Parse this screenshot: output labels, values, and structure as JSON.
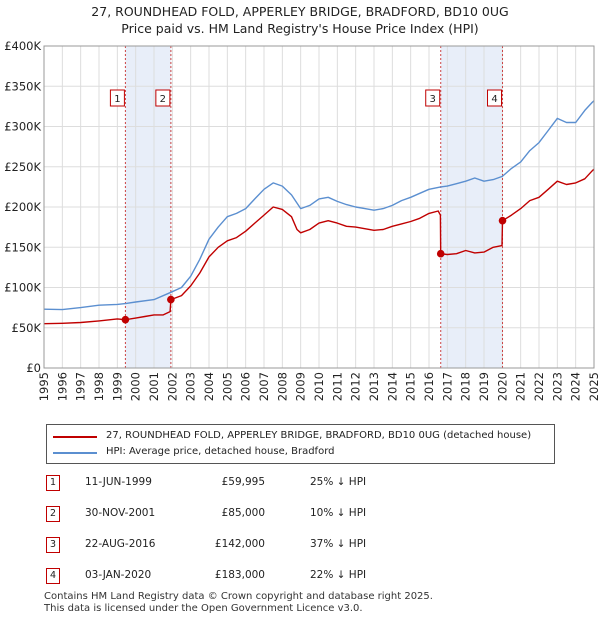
{
  "chart_data": {
    "type": "line",
    "title": "27, ROUNDHEAD FOLD, APPERLEY BRIDGE, BRADFORD, BD10 0UG",
    "subtitle": "Price paid vs. HM Land Registry's House Price Index (HPI)",
    "xlabel": "",
    "ylabel": "",
    "xlim": [
      1995,
      2025
    ],
    "ylim": [
      0,
      400000
    ],
    "x_ticks": [
      "1995",
      "1996",
      "1997",
      "1998",
      "1999",
      "2000",
      "2001",
      "2002",
      "2003",
      "2004",
      "2005",
      "2006",
      "2007",
      "2008",
      "2009",
      "2010",
      "2011",
      "2012",
      "2013",
      "2014",
      "2015",
      "2016",
      "2017",
      "2018",
      "2019",
      "2020",
      "2021",
      "2022",
      "2023",
      "2024",
      "2025"
    ],
    "y_ticks": [
      {
        "value": 0,
        "label": "£0"
      },
      {
        "value": 50000,
        "label": "£50K"
      },
      {
        "value": 100000,
        "label": "£100K"
      },
      {
        "value": 150000,
        "label": "£150K"
      },
      {
        "value": 200000,
        "label": "£200K"
      },
      {
        "value": 250000,
        "label": "£250K"
      },
      {
        "value": 300000,
        "label": "£300K"
      },
      {
        "value": 350000,
        "label": "£350K"
      },
      {
        "value": 400000,
        "label": "£400K"
      }
    ],
    "grid": true,
    "series": [
      {
        "name": "27, ROUNDHEAD FOLD, APPERLEY BRIDGE, BRADFORD, BD10 0UG (detached house)",
        "color": "#c00000",
        "points": [
          [
            1995.0,
            55000
          ],
          [
            1996.0,
            55500
          ],
          [
            1997.0,
            56500
          ],
          [
            1998.0,
            58500
          ],
          [
            1999.0,
            61000
          ],
          [
            1999.44,
            59995
          ],
          [
            2000.0,
            62000
          ],
          [
            2000.5,
            64000
          ],
          [
            2001.0,
            66000
          ],
          [
            2001.5,
            66000
          ],
          [
            2001.88,
            70000
          ],
          [
            2001.92,
            85000
          ],
          [
            2002.5,
            90000
          ],
          [
            2003.0,
            102000
          ],
          [
            2003.5,
            118000
          ],
          [
            2004.0,
            138000
          ],
          [
            2004.5,
            150000
          ],
          [
            2005.0,
            158000
          ],
          [
            2005.5,
            162000
          ],
          [
            2006.0,
            170000
          ],
          [
            2006.5,
            180000
          ],
          [
            2007.0,
            190000
          ],
          [
            2007.5,
            200000
          ],
          [
            2008.0,
            197000
          ],
          [
            2008.5,
            188000
          ],
          [
            2008.8,
            172000
          ],
          [
            2009.0,
            168000
          ],
          [
            2009.5,
            172000
          ],
          [
            2010.0,
            180000
          ],
          [
            2010.5,
            183000
          ],
          [
            2011.0,
            180000
          ],
          [
            2011.5,
            176000
          ],
          [
            2012.0,
            175000
          ],
          [
            2012.5,
            173000
          ],
          [
            2013.0,
            171000
          ],
          [
            2013.5,
            172000
          ],
          [
            2014.0,
            176000
          ],
          [
            2014.5,
            179000
          ],
          [
            2015.0,
            182000
          ],
          [
            2015.5,
            186000
          ],
          [
            2016.0,
            192000
          ],
          [
            2016.5,
            195000
          ],
          [
            2016.62,
            190000
          ],
          [
            2016.64,
            142000
          ],
          [
            2017.0,
            141000
          ],
          [
            2017.5,
            142000
          ],
          [
            2018.0,
            146000
          ],
          [
            2018.5,
            143000
          ],
          [
            2019.0,
            144000
          ],
          [
            2019.5,
            150000
          ],
          [
            2019.98,
            152000
          ],
          [
            2020.01,
            183000
          ],
          [
            2020.5,
            190000
          ],
          [
            2021.0,
            198000
          ],
          [
            2021.5,
            208000
          ],
          [
            2022.0,
            212000
          ],
          [
            2022.5,
            222000
          ],
          [
            2023.0,
            232000
          ],
          [
            2023.5,
            228000
          ],
          [
            2024.0,
            230000
          ],
          [
            2024.5,
            235000
          ],
          [
            2024.9,
            245000
          ],
          [
            2025.0,
            247000
          ]
        ]
      },
      {
        "name": "HPI: Average price, detached house, Bradford",
        "color": "#5b8fd0",
        "points": [
          [
            1995.0,
            73000
          ],
          [
            1996.0,
            72500
          ],
          [
            1997.0,
            75000
          ],
          [
            1998.0,
            78000
          ],
          [
            1999.0,
            79000
          ],
          [
            1999.44,
            80000
          ],
          [
            2000.0,
            82000
          ],
          [
            2001.0,
            85000
          ],
          [
            2001.92,
            94000
          ],
          [
            2002.5,
            100000
          ],
          [
            2003.0,
            114000
          ],
          [
            2003.5,
            135000
          ],
          [
            2004.0,
            160000
          ],
          [
            2004.5,
            175000
          ],
          [
            2005.0,
            188000
          ],
          [
            2005.5,
            192000
          ],
          [
            2006.0,
            198000
          ],
          [
            2006.5,
            210000
          ],
          [
            2007.0,
            222000
          ],
          [
            2007.5,
            230000
          ],
          [
            2008.0,
            226000
          ],
          [
            2008.5,
            215000
          ],
          [
            2009.0,
            198000
          ],
          [
            2009.5,
            202000
          ],
          [
            2010.0,
            210000
          ],
          [
            2010.5,
            212000
          ],
          [
            2011.0,
            207000
          ],
          [
            2011.5,
            203000
          ],
          [
            2012.0,
            200000
          ],
          [
            2012.5,
            198000
          ],
          [
            2013.0,
            196000
          ],
          [
            2013.5,
            198000
          ],
          [
            2014.0,
            202000
          ],
          [
            2014.5,
            208000
          ],
          [
            2015.0,
            212000
          ],
          [
            2015.5,
            217000
          ],
          [
            2016.0,
            222000
          ],
          [
            2016.64,
            225000
          ],
          [
            2017.0,
            226000
          ],
          [
            2017.5,
            229000
          ],
          [
            2018.0,
            232000
          ],
          [
            2018.5,
            236000
          ],
          [
            2019.0,
            232000
          ],
          [
            2019.5,
            234000
          ],
          [
            2020.0,
            238000
          ],
          [
            2020.5,
            248000
          ],
          [
            2021.0,
            256000
          ],
          [
            2021.5,
            270000
          ],
          [
            2022.0,
            280000
          ],
          [
            2022.5,
            295000
          ],
          [
            2023.0,
            310000
          ],
          [
            2023.5,
            305000
          ],
          [
            2024.0,
            305000
          ],
          [
            2024.5,
            320000
          ],
          [
            2024.9,
            330000
          ],
          [
            2025.0,
            332000
          ]
        ]
      }
    ],
    "sales": [
      {
        "id": "1",
        "x": 1999.44,
        "value": 59995,
        "date": "11-JUN-1999",
        "price": "£59,995",
        "hpi": "25% ↓ HPI"
      },
      {
        "id": "2",
        "x": 2001.92,
        "value": 85000,
        "date": "30-NOV-2001",
        "price": "£85,000",
        "hpi": "10% ↓ HPI"
      },
      {
        "id": "3",
        "x": 2016.64,
        "value": 142000,
        "date": "22-AUG-2016",
        "price": "£142,000",
        "hpi": "37% ↓ HPI"
      },
      {
        "id": "4",
        "x": 2020.01,
        "value": 183000,
        "date": "03-JAN-2020",
        "price": "£183,000",
        "hpi": "22% ↓ HPI"
      }
    ],
    "shaded_periods": [
      [
        1999.44,
        2001.92
      ],
      [
        2016.64,
        2020.01
      ]
    ],
    "colors": {
      "shade": "#e8eef9",
      "grid": "#dddddd",
      "sale_line": "#cc4444",
      "sale_dot": "#c00000"
    }
  },
  "legend": {
    "property_label": "27, ROUNDHEAD FOLD, APPERLEY BRIDGE, BRADFORD, BD10 0UG (detached house)",
    "hpi_label": "HPI: Average price, detached house, Bradford"
  },
  "footer": {
    "line1": "Contains HM Land Registry data © Crown copyright and database right 2025.",
    "line2": "This data is licensed under the Open Government Licence v3.0."
  }
}
